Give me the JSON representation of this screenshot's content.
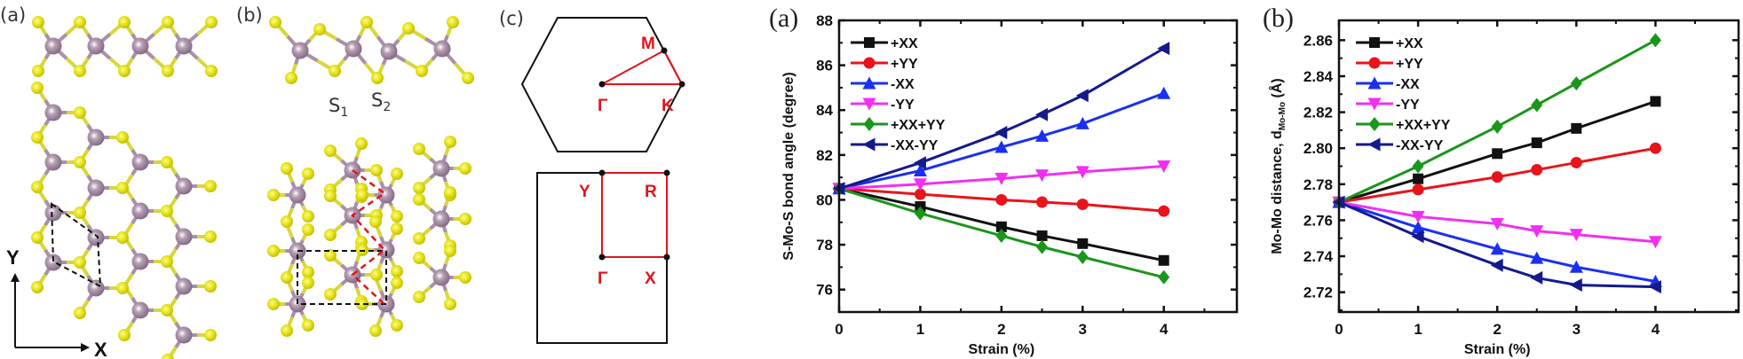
{
  "panels": {
    "structure_a": "(a)",
    "structure_b": "(b)",
    "brillouin_c": "(c)",
    "axis_x": "X",
    "axis_y": "Y",
    "s1": {
      "base": "S",
      "sub": "1"
    },
    "s2": {
      "base": "S",
      "sub": "2"
    },
    "hex_points": {
      "gamma": "Γ",
      "m": "M",
      "k": "K"
    },
    "rect_points": {
      "gamma": "Γ",
      "y": "Y",
      "r": "R",
      "x": "X"
    }
  },
  "colors": {
    "mo_atom": "#9a7f98",
    "s_atom": "#e2e020",
    "path": "#e0141b"
  },
  "chart_data": [
    {
      "type": "line",
      "panel_label": "(a)",
      "xlabel": "Strain (%)",
      "ylabel": "S-Mo-S bond angle (degree)",
      "xlim": [
        0,
        4.9
      ],
      "ylim": [
        75,
        88
      ],
      "xticks": [
        0,
        1,
        2,
        3,
        4
      ],
      "xticklabels": [
        "0",
        "1",
        "2",
        "3",
        "4"
      ],
      "yticks": [
        76,
        78,
        80,
        82,
        84,
        86,
        88
      ],
      "yticklabels": [
        "76",
        "78",
        "80",
        "82",
        "84",
        "86",
        "88"
      ],
      "grid": false,
      "legend_position": "top-left",
      "x": [
        0,
        1,
        2,
        2.5,
        3,
        4
      ],
      "series": [
        {
          "name": "+XX",
          "color": "#111111",
          "marker": "square",
          "values": [
            80.5,
            79.7,
            78.8,
            78.4,
            78.05,
            77.3
          ]
        },
        {
          "name": "+YY",
          "color": "#e8141b",
          "marker": "circle",
          "values": [
            80.5,
            80.25,
            80.0,
            79.9,
            79.8,
            79.5
          ]
        },
        {
          "name": "-XX",
          "color": "#1a30f0",
          "marker": "triangle-up",
          "values": [
            80.5,
            81.3,
            82.35,
            82.85,
            83.4,
            84.75
          ]
        },
        {
          "name": "-YY",
          "color": "#f030f0",
          "marker": "triangle-down",
          "values": [
            80.5,
            80.7,
            80.95,
            81.1,
            81.25,
            81.5
          ]
        },
        {
          "name": "+XX+YY",
          "color": "#1a961a",
          "marker": "diamond",
          "values": [
            80.5,
            79.4,
            78.4,
            77.9,
            77.45,
            76.55
          ]
        },
        {
          "name": "-XX-YY",
          "color": "#141a8c",
          "marker": "triangle-left",
          "values": [
            80.5,
            81.65,
            83.0,
            83.8,
            84.65,
            86.75
          ]
        }
      ]
    },
    {
      "type": "line",
      "panel_label": "(b)",
      "xlabel": "Strain (%)",
      "ylabel": {
        "main": "Mo-Mo distance, d",
        "sub": "Mo-Mo",
        "unit": " (Å)"
      },
      "xlim": [
        0,
        5.05
      ],
      "ylim": [
        2.709,
        2.871
      ],
      "xticks": [
        0,
        1,
        2,
        3,
        4
      ],
      "xticklabels": [
        "0",
        "1",
        "2",
        "3",
        "4"
      ],
      "yticks": [
        2.72,
        2.74,
        2.76,
        2.78,
        2.8,
        2.82,
        2.84,
        2.86
      ],
      "yticklabels": [
        "2.72",
        "2.74",
        "2.76",
        "2.78",
        "2.80",
        "2.82",
        "2.84",
        "2.86"
      ],
      "grid": false,
      "legend_position": "top-left",
      "x": [
        0,
        1,
        2,
        2.5,
        3,
        4
      ],
      "series": [
        {
          "name": "+XX",
          "color": "#111111",
          "marker": "square",
          "values": [
            2.77,
            2.783,
            2.797,
            2.803,
            2.811,
            2.826
          ]
        },
        {
          "name": "+YY",
          "color": "#e8141b",
          "marker": "circle",
          "values": [
            2.77,
            2.777,
            2.784,
            2.788,
            2.792,
            2.8
          ]
        },
        {
          "name": "-XX",
          "color": "#1a30f0",
          "marker": "triangle-up",
          "values": [
            2.77,
            2.756,
            2.744,
            2.739,
            2.734,
            2.726
          ]
        },
        {
          "name": "-YY",
          "color": "#f030f0",
          "marker": "triangle-down",
          "values": [
            2.77,
            2.762,
            2.758,
            2.754,
            2.752,
            2.748
          ]
        },
        {
          "name": "+XX+YY",
          "color": "#1a961a",
          "marker": "diamond",
          "values": [
            2.77,
            2.79,
            2.812,
            2.824,
            2.836,
            2.86
          ]
        },
        {
          "name": "-XX-YY",
          "color": "#141a8c",
          "marker": "triangle-left",
          "values": [
            2.77,
            2.751,
            2.735,
            2.728,
            2.724,
            2.723
          ]
        }
      ]
    }
  ]
}
